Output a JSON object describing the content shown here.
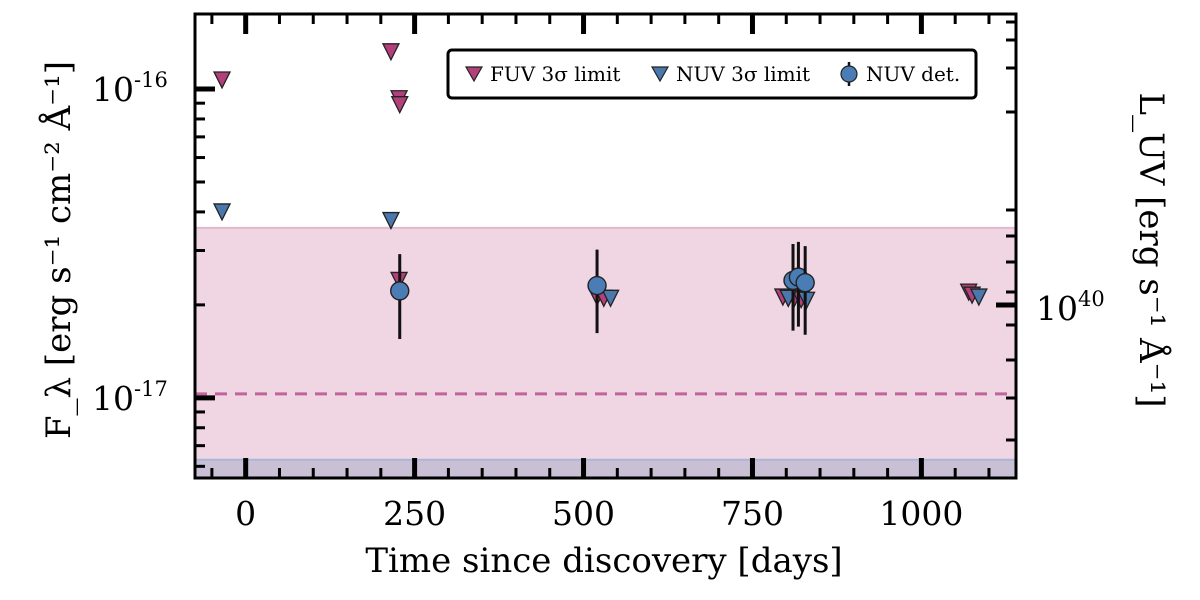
{
  "chart_data": {
    "type": "scatter",
    "xlabel": "Time since discovery [days]",
    "ylabel_left": "F_λ [erg s⁻¹ cm⁻² Å⁻¹]",
    "ylabel_right": "L_UV [erg s⁻¹ Å⁻¹]",
    "xlim": [
      -75,
      1140
    ],
    "ylim": [
      5.5e-18,
      1.75e-16
    ],
    "yscale": "log",
    "x_ticks": [
      0,
      250,
      500,
      750,
      1000
    ],
    "x_tick_labels": [
      "0",
      "250",
      "500",
      "750",
      "1000"
    ],
    "y_major_ticks": [
      1e-17,
      1e-16
    ],
    "y_tick_labels": [
      "10-17",
      "10-16"
    ],
    "right_tick_label": "1040",
    "legend_position": "top-right",
    "bands": [
      {
        "ymin": 5.5e-18,
        "ymax": 3.55e-17,
        "color": "#efd6e2"
      },
      {
        "ymin": 5.5e-18,
        "ymax": 6.3e-18,
        "color": "#c9c0d6"
      }
    ],
    "reference_line": {
      "y": 1.03e-17,
      "color": "#c0649b",
      "style": "dashed"
    },
    "series": [
      {
        "name": "FUV 3σ limit",
        "marker": "triangle-down",
        "color": "#b3407b",
        "points": [
          {
            "x": -35,
            "y": 1.07e-16
          },
          {
            "x": 215,
            "y": 1.32e-16
          },
          {
            "x": 227,
            "y": 9.3e-17
          },
          {
            "x": 228,
            "y": 8.9e-17
          },
          {
            "x": 227,
            "y": 2.4e-17
          },
          {
            "x": 520,
            "y": 2.12e-17
          },
          {
            "x": 530,
            "y": 2.1e-17
          },
          {
            "x": 795,
            "y": 2.12e-17
          },
          {
            "x": 803,
            "y": 2.1e-17
          },
          {
            "x": 812,
            "y": 2.1e-17
          },
          {
            "x": 822,
            "y": 2.08e-17
          },
          {
            "x": 1070,
            "y": 2.2e-17
          },
          {
            "x": 1075,
            "y": 2.15e-17
          }
        ]
      },
      {
        "name": "NUV 3σ limit",
        "marker": "triangle-down",
        "color": "#4a78ad",
        "points": [
          {
            "x": -35,
            "y": 4e-17
          },
          {
            "x": 215,
            "y": 3.75e-17
          },
          {
            "x": 540,
            "y": 2.1e-17
          },
          {
            "x": 803,
            "y": 2.1e-17
          },
          {
            "x": 830,
            "y": 2.07e-17
          },
          {
            "x": 1085,
            "y": 2.12e-17
          }
        ]
      },
      {
        "name": "NUV det.",
        "marker": "circle",
        "color": "#4a7db5",
        "points": [
          {
            "x": 228,
            "y": 2.22e-17,
            "ylo": 1.55e-17,
            "yhi": 2.92e-17
          },
          {
            "x": 520,
            "y": 2.31e-17,
            "ylo": 1.62e-17,
            "yhi": 3.02e-17
          },
          {
            "x": 810,
            "y": 2.4e-17,
            "ylo": 1.65e-17,
            "yhi": 3.15e-17
          },
          {
            "x": 818,
            "y": 2.46e-17,
            "ylo": 1.7e-17,
            "yhi": 3.2e-17
          },
          {
            "x": 828,
            "y": 2.36e-17,
            "ylo": 1.6e-17,
            "yhi": 3.1e-17
          }
        ]
      }
    ]
  }
}
